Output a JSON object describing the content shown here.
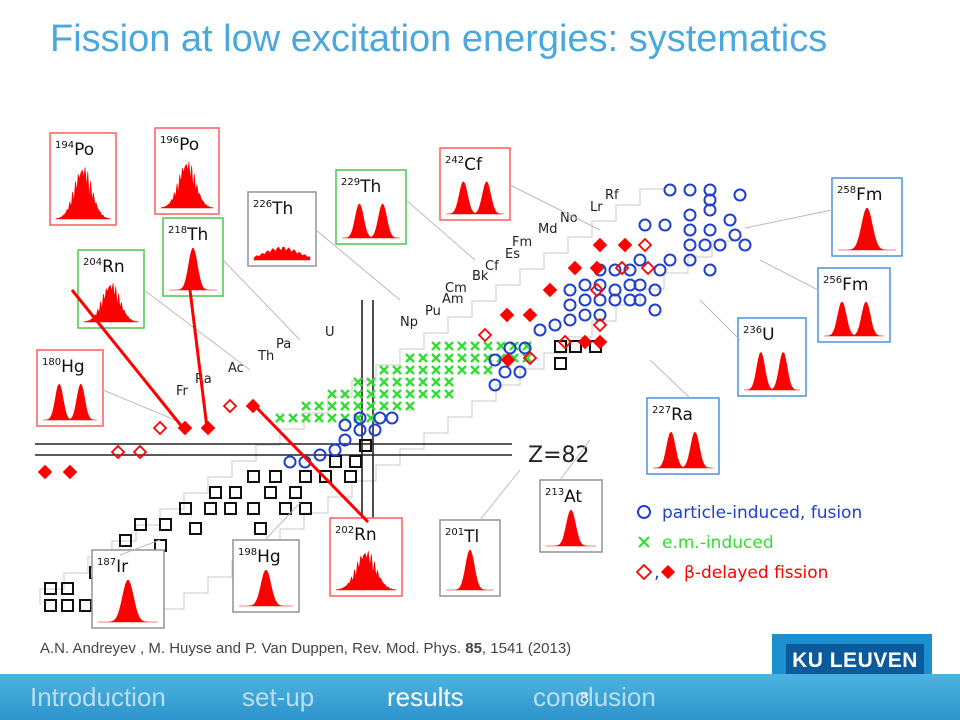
{
  "title": "Fission at low excitation energies: systematics",
  "reference": {
    "authors": "A.N. Andreyev , M. Huyse and P. Van Duppen, Rev. Mod. Phys.",
    "volume": "85",
    "rest": ", 1541 (2013)"
  },
  "nav": {
    "items": [
      "Introduction",
      "set-up",
      "results",
      "conclusion"
    ],
    "active": "results",
    "page_number": "8"
  },
  "logo": "KU LEUVEN",
  "z_label": "Z=82",
  "element_labels": [
    "Fr",
    "Ra",
    "Ac",
    "Th",
    "Pa",
    "U",
    "Np",
    "Pu",
    "Am",
    "Cm",
    "Bk",
    "Cf",
    "Es",
    "Fm",
    "Md",
    "No",
    "Lr",
    "Rf"
  ],
  "legend": [
    {
      "symbol": "○",
      "label": "particle-induced, fusion"
    },
    {
      "symbol": "×",
      "label": "e.m.-induced"
    },
    {
      "symbol": "◇, ◆",
      "label": "β-delayed fission"
    }
  ],
  "distributions": [
    {
      "mass": "194",
      "element": "Po",
      "shape": "multi",
      "frame": "red"
    },
    {
      "mass": "196",
      "element": "Po",
      "shape": "multi",
      "frame": "red"
    },
    {
      "mass": "226",
      "element": "Th",
      "shape": "flat",
      "frame": "gray"
    },
    {
      "mass": "229",
      "element": "Th",
      "shape": "double",
      "frame": "green"
    },
    {
      "mass": "242",
      "element": "Cf",
      "shape": "double",
      "frame": "red"
    },
    {
      "mass": "258",
      "element": "Fm",
      "shape": "single",
      "frame": "blue"
    },
    {
      "mass": "218",
      "element": "Th",
      "shape": "single",
      "frame": "green"
    },
    {
      "mass": "204",
      "element": "Rn",
      "shape": "multi",
      "frame": "green"
    },
    {
      "mass": "256",
      "element": "Fm",
      "shape": "double",
      "frame": "blue"
    },
    {
      "mass": "236",
      "element": "U",
      "shape": "double",
      "frame": "blue"
    },
    {
      "mass": "180",
      "element": "Hg",
      "shape": "double",
      "frame": "red"
    },
    {
      "mass": "227",
      "element": "Ra",
      "shape": "double",
      "frame": "blue"
    },
    {
      "mass": "213",
      "element": "At",
      "shape": "single",
      "frame": "gray"
    },
    {
      "mass": "202",
      "element": "Rn",
      "shape": "multi",
      "frame": "red"
    },
    {
      "mass": "201",
      "element": "Tl",
      "shape": "single",
      "frame": "gray"
    },
    {
      "mass": "198",
      "element": "Hg",
      "shape": "single",
      "frame": "gray"
    },
    {
      "mass": "187",
      "element": "Ir",
      "shape": "single",
      "frame": "gray"
    }
  ],
  "colors": {
    "title": "#4aa8dc",
    "fission_red": "#ff0000",
    "fusion_blue": "#1f3fd0",
    "em_green": "#33dd33",
    "frame_red": "#ff6666",
    "frame_green": "#55cc55",
    "frame_blue": "#5599dd",
    "frame_gray": "#999999"
  }
}
